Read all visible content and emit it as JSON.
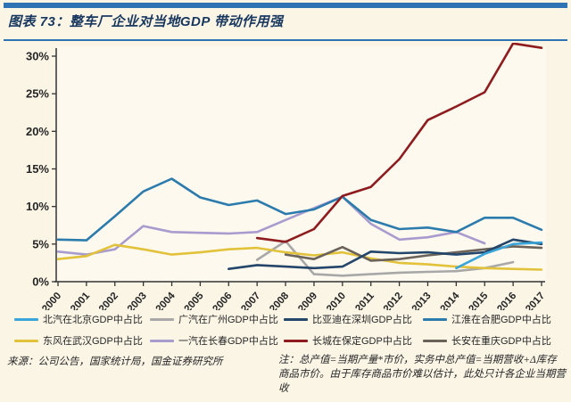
{
  "header": {
    "title": "图表 73：整车厂企业对当地GDP 带动作用强"
  },
  "colors": {
    "accent_blue": "#2E74B5",
    "background": "#FBF5E6",
    "plot_background": "#FDF9EE",
    "axis": "#333333",
    "text": "#262626"
  },
  "chart_data": {
    "type": "line",
    "title": "整车厂企业对当地GDP 带动作用强",
    "x": [
      2000,
      2001,
      2002,
      2003,
      2004,
      2005,
      2006,
      2007,
      2008,
      2009,
      2010,
      2011,
      2012,
      2013,
      2014,
      2015,
      2016,
      2017
    ],
    "ylim": [
      0,
      32
    ],
    "yticks": [
      0,
      5,
      10,
      15,
      20,
      25,
      30
    ],
    "ytick_suffix": "%",
    "grid": false,
    "legend_position": "bottom",
    "series": [
      {
        "name": "北汽在北京GDP中占比",
        "color": "#3AA5D8",
        "values": [
          null,
          null,
          null,
          null,
          null,
          null,
          null,
          null,
          null,
          null,
          null,
          null,
          null,
          null,
          1.8,
          3.7,
          5.0,
          5.2
        ]
      },
      {
        "name": "广汽在广州GDP中占比",
        "color": "#A8A8A8",
        "values": [
          null,
          null,
          null,
          null,
          null,
          null,
          null,
          2.9,
          5.4,
          1.0,
          0.8,
          1.0,
          1.2,
          1.3,
          1.4,
          1.8,
          2.6,
          null
        ]
      },
      {
        "name": "比亚迪在深圳GDP占比",
        "color": "#24466B",
        "values": [
          null,
          null,
          null,
          null,
          null,
          null,
          1.7,
          2.2,
          2.0,
          1.8,
          2.0,
          4.0,
          3.8,
          3.9,
          3.6,
          3.9,
          5.6,
          5.0
        ]
      },
      {
        "name": "江淮在合肥GDP中占比",
        "color": "#2C7BAD",
        "values": [
          5.6,
          5.5,
          8.7,
          12.0,
          13.7,
          11.2,
          10.2,
          10.8,
          9.0,
          9.6,
          11.3,
          8.2,
          7.0,
          7.2,
          6.6,
          8.5,
          8.5,
          6.9
        ]
      },
      {
        "name": "东风在武汉GDP中占比",
        "color": "#E2C23B",
        "values": [
          3.0,
          3.4,
          4.9,
          4.3,
          3.6,
          3.9,
          4.3,
          4.5,
          3.9,
          3.5,
          3.9,
          3.1,
          2.5,
          2.3,
          2.0,
          1.8,
          1.7,
          1.6
        ]
      },
      {
        "name": "一汽在长春GDP中占比",
        "color": "#A89CCF",
        "values": [
          4.0,
          3.6,
          4.3,
          7.4,
          6.6,
          6.5,
          6.4,
          6.6,
          8.2,
          9.8,
          11.3,
          7.7,
          5.6,
          5.9,
          6.6,
          5.1,
          null,
          null
        ]
      },
      {
        "name": "长城在保定GDP中占比",
        "color": "#8E1B1E",
        "values": [
          null,
          null,
          null,
          null,
          null,
          null,
          null,
          5.8,
          5.3,
          7.0,
          11.4,
          12.6,
          16.3,
          21.5,
          23.3,
          25.2,
          31.7,
          31.1
        ]
      },
      {
        "name": "长安在重庆GDP中占比",
        "color": "#6B635A",
        "values": [
          null,
          null,
          null,
          null,
          null,
          null,
          null,
          null,
          3.6,
          3.0,
          4.6,
          2.8,
          3.0,
          3.5,
          3.9,
          4.3,
          4.7,
          4.5
        ]
      }
    ],
    "draw_order": [
      1,
      5,
      4,
      7,
      2,
      0,
      3,
      6
    ]
  },
  "footer": {
    "source": "来源：公司公告，国家统计局，国金证券研究所",
    "note": "注：总产值=当期产量*市价，实务中总产值=当期营收+Δ库存商品市价。由于库存商品市价难以估计，此处只计各企业当期营收"
  }
}
